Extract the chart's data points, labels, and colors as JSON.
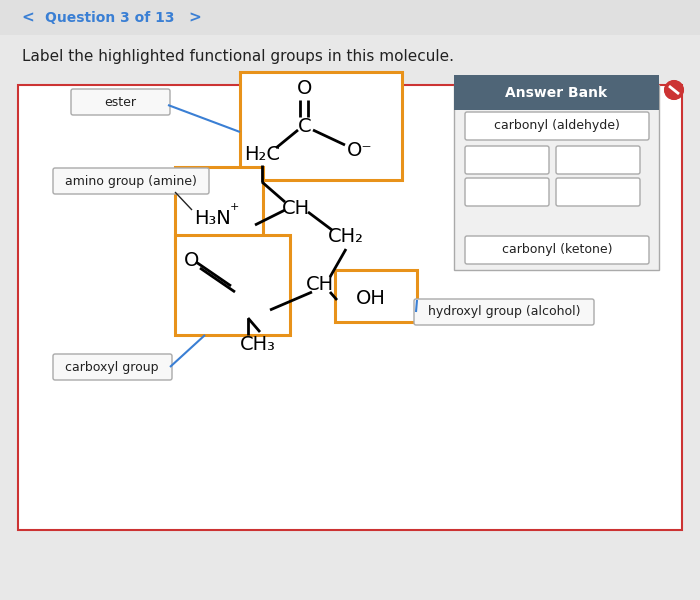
{
  "bg_color": "#e8e8e8",
  "panel_bg": "#ffffff",
  "title_text": "Label the highlighted functional groups in this molecule.",
  "question_text": "Question 3 of 13",
  "answer_bank_title": "Answer Bank",
  "answer_bank_items": [
    "carbonyl (aldehyde)",
    "carbonyl (ketone)"
  ],
  "orange": "#e8921a",
  "blue": "#3a7fd4",
  "red": "#cc3333",
  "dark_slate": "#4f6577",
  "gray_border": "#aaaaaa",
  "text_dark": "#222222",
  "label_bg": "#f5f5f5",
  "answer_panel_bg": "#f0f0f0"
}
